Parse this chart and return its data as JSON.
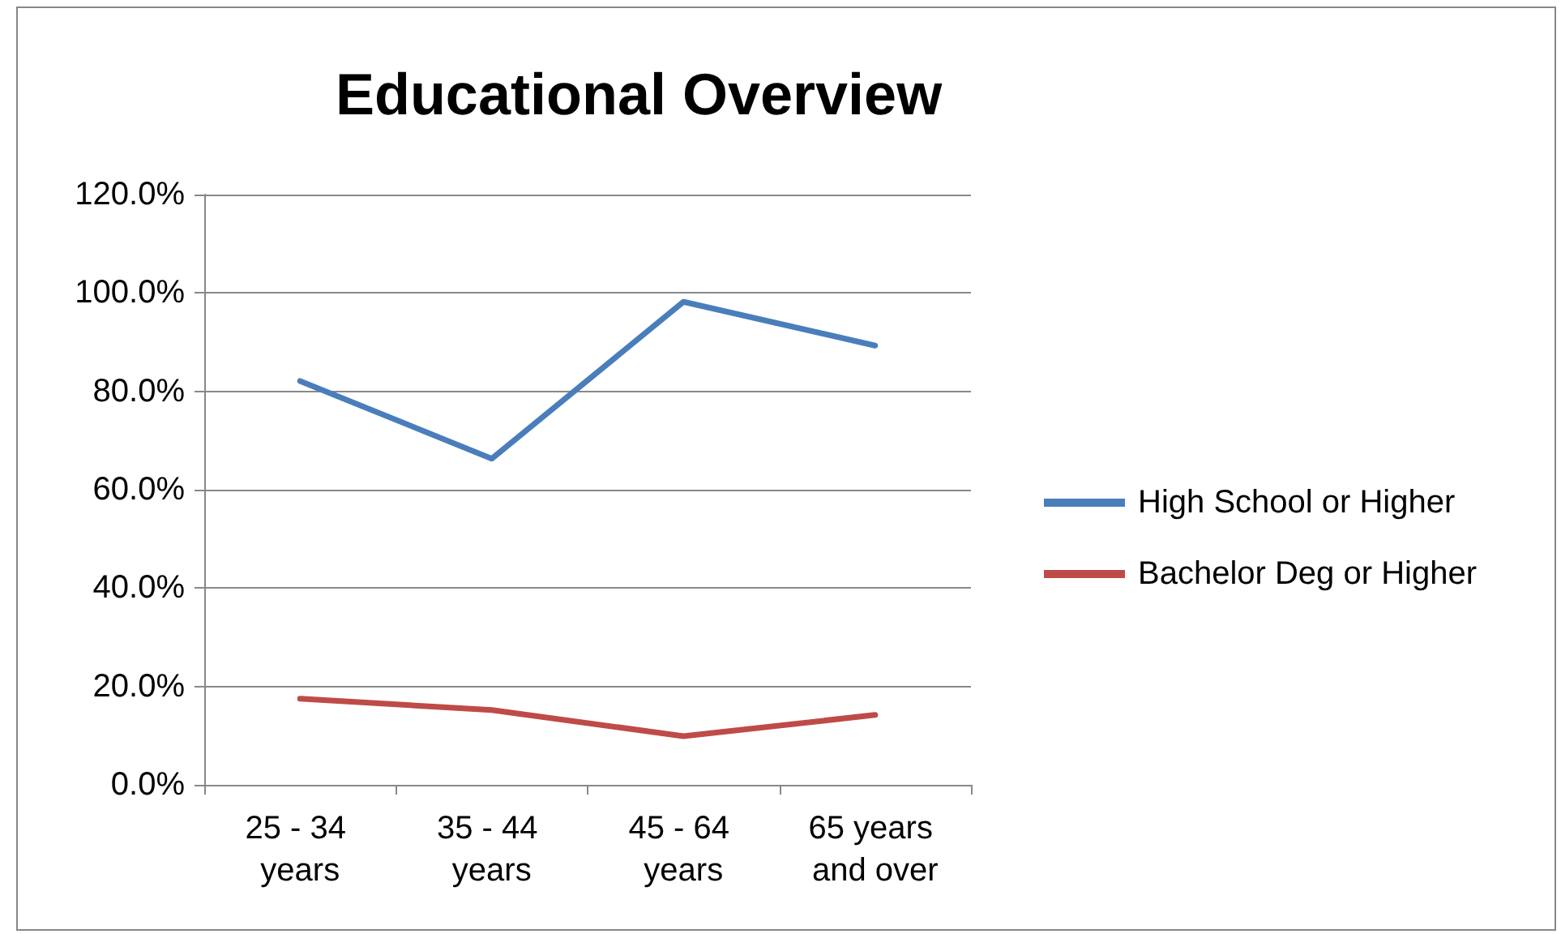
{
  "chart_data": {
    "type": "line",
    "title": "Educational Overview",
    "categories": [
      "25 - 34 years",
      "35 - 44 years",
      "45 - 64 years",
      "65 years and over"
    ],
    "series": [
      {
        "name": "High School or Higher",
        "color": "#4a7ebb",
        "values": [
          82.1,
          66.3,
          98.2,
          89.3
        ]
      },
      {
        "name": "Bachelor Deg or Higher",
        "color": "#be4b48",
        "values": [
          17.5,
          15.2,
          9.9,
          14.2
        ]
      }
    ],
    "ylim": [
      0,
      120
    ],
    "yticks": [
      {
        "value": 0,
        "label": "0.0%"
      },
      {
        "value": 20,
        "label": "20.0%"
      },
      {
        "value": 40,
        "label": "40.0%"
      },
      {
        "value": 60,
        "label": "60.0%"
      },
      {
        "value": 80,
        "label": "80.0%"
      },
      {
        "value": 100,
        "label": "100.0%"
      },
      {
        "value": 120,
        "label": "120.0%"
      }
    ],
    "grid": "y",
    "legend": "right",
    "marker": "none",
    "line_style": "solid"
  }
}
